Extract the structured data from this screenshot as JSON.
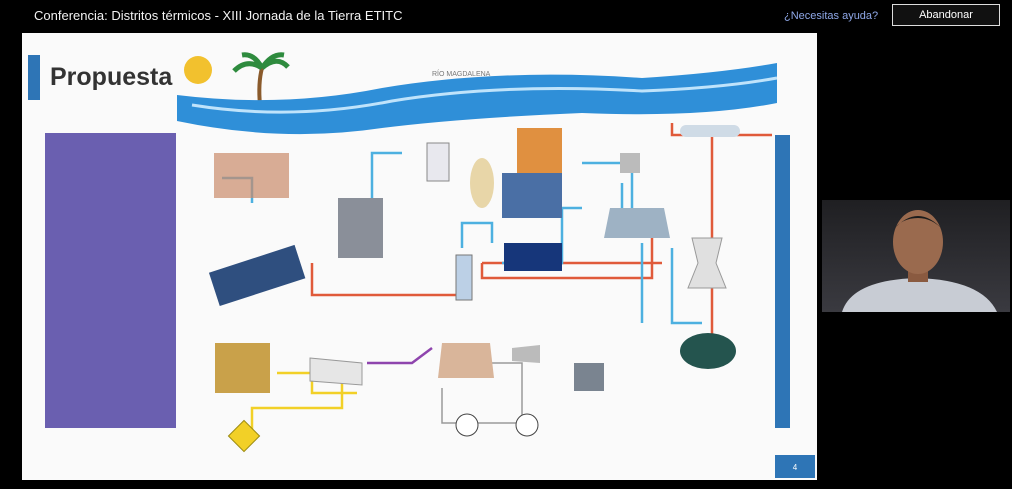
{
  "window": {
    "title": "Conferencia: Distritos térmicos - XIII Jornada de la Tierra ETITC",
    "help_link": "¿Necesitas ayuda?",
    "leave_button": "Abandonar"
  },
  "slide": {
    "title": "Propuesta",
    "river_label": "RÍO MAGDALENA",
    "page_number": "4"
  }
}
